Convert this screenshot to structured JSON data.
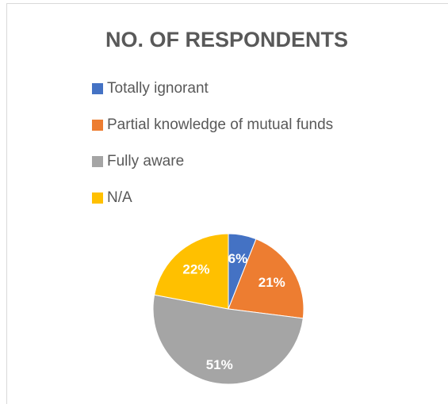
{
  "chart_data": {
    "type": "pie",
    "title": "NO. OF RESPONDENTS",
    "categories": [
      "Totally ignorant",
      "Partial knowledge of mutual funds",
      "Fully aware",
      "N/A"
    ],
    "values": [
      6,
      21,
      51,
      22
    ],
    "value_labels": [
      "6%",
      "21%",
      "51%",
      "22%"
    ],
    "colors": [
      "#4472c4",
      "#ed7d31",
      "#a5a5a5",
      "#ffc000"
    ],
    "legend": "top"
  }
}
